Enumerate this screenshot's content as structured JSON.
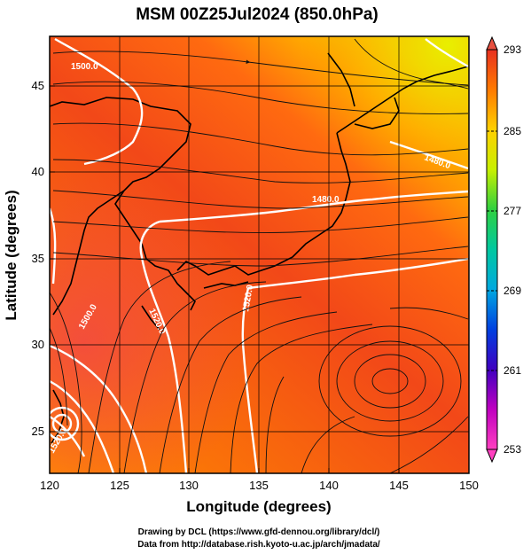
{
  "title": "MSM 00Z25Jul2024 (850.0hPa)",
  "xaxis": {
    "label": "Longitude (degrees)",
    "range": [
      120,
      150
    ],
    "ticks": [
      "120",
      "125",
      "130",
      "135",
      "140",
      "145",
      "150"
    ]
  },
  "yaxis": {
    "label": "Latitude  (degrees)",
    "range": [
      22.4,
      47.6
    ],
    "ticks": [
      "25",
      "30",
      "35",
      "40",
      "45"
    ]
  },
  "colorbar": {
    "range": [
      253,
      293
    ],
    "ticks": [
      "293",
      "285",
      "277",
      "269",
      "261",
      "253"
    ],
    "colors_top_to_bottom": [
      "#e83020",
      "#ff7a00",
      "#ffd000",
      "#c8f000",
      "#30d040",
      "#00c8a0",
      "#00a8e0",
      "#0040e0",
      "#4000c0",
      "#c000c0",
      "#ff40c0"
    ]
  },
  "contour_labels": [
    "1500.0",
    "1500.0",
    "1480.0",
    "1480.0",
    "1520.0",
    "1520.0",
    "1520.0"
  ],
  "credits": [
    "Drawing by DCL (https://www.gfd-dennou.org/library/dcl/)",
    "Data from http://database.rish.kyoto-u.ac.jp/arch/jmadata/"
  ]
}
